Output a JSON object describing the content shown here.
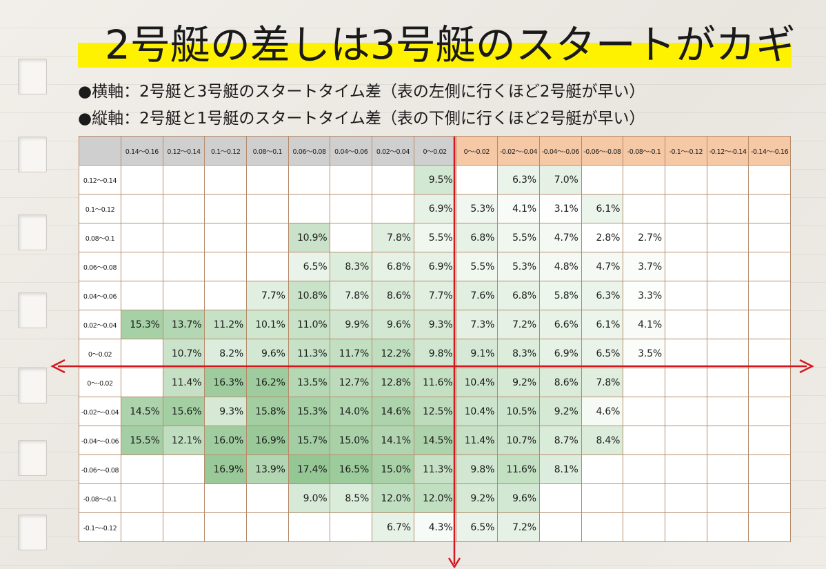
{
  "title": "2号艇の差しは3号艇のスタートがカギ",
  "notes": {
    "horizontal": "●横軸：2号艇と3号艇のスタートタイム差（表の左側に行くほど2号艇が早い）",
    "vertical": "●縦軸：2号艇と1号艇のスタートタイム差（表の下側に行くほど2号艇が早い）"
  },
  "colors": {
    "highlight": "#fff200",
    "left_header": "#cfcfcf",
    "right_header": "#f5c8a6",
    "axis_arrow": "#d6161e",
    "cell_low": "#ffffff",
    "cell_high": "#8fc48f",
    "grid_line": "#b58b6a"
  },
  "chart_data": {
    "type": "heatmap",
    "title": "2号艇の差しは3号艇のスタートがカギ",
    "xlabel": "2号艇と3号艇のスタートタイム差（表の左側に行くほど2号艇が早い）",
    "ylabel": "2号艇と1号艇のスタートタイム差（表の下側に行くほど2号艇が早い）",
    "x_categories": [
      "0.14～0.16",
      "0.12～0.14",
      "0.1～0.12",
      "0.08～0.1",
      "0.06～0.08",
      "0.04～0.06",
      "0.02～0.04",
      "0～0.02",
      "0～-0.02",
      "-0.02～-0.04",
      "-0.04～-0.06",
      "-0.06～-0.08",
      "-0.08～-0.1",
      "-0.1～-0.12",
      "-0.12～-0.14",
      "-0.14～-0.16"
    ],
    "y_categories": [
      "0.12～0.14",
      "0.1～0.12",
      "0.08～0.1",
      "0.06～0.08",
      "0.04～0.06",
      "0.02～0.04",
      "0～0.02",
      "0～-0.02",
      "-0.02～-0.04",
      "-0.04～-0.06",
      "-0.06～-0.08",
      "-0.08～-0.1",
      "-0.1～-0.12"
    ],
    "unit": "%",
    "values": [
      [
        null,
        null,
        null,
        null,
        null,
        null,
        null,
        9.5,
        null,
        6.3,
        7.0,
        null,
        null,
        null,
        null,
        null
      ],
      [
        null,
        null,
        null,
        null,
        null,
        null,
        null,
        6.9,
        5.3,
        4.1,
        3.1,
        6.1,
        null,
        null,
        null,
        null
      ],
      [
        null,
        null,
        null,
        null,
        10.9,
        null,
        7.8,
        5.5,
        6.8,
        5.5,
        4.7,
        2.8,
        2.7,
        null,
        null,
        null
      ],
      [
        null,
        null,
        null,
        null,
        6.5,
        8.3,
        6.8,
        6.9,
        5.5,
        5.3,
        4.8,
        4.7,
        3.7,
        null,
        null,
        null
      ],
      [
        null,
        null,
        null,
        7.7,
        10.8,
        7.8,
        8.6,
        7.7,
        7.6,
        6.8,
        5.8,
        6.3,
        3.3,
        null,
        null,
        null
      ],
      [
        15.3,
        13.7,
        11.2,
        10.1,
        11.0,
        9.9,
        9.6,
        9.3,
        7.3,
        7.2,
        6.6,
        6.1,
        4.1,
        null,
        null,
        null
      ],
      [
        null,
        10.7,
        8.2,
        9.6,
        11.3,
        11.7,
        12.2,
        9.8,
        9.1,
        8.3,
        6.9,
        6.5,
        3.5,
        null,
        null,
        null
      ],
      [
        null,
        11.4,
        16.3,
        16.2,
        13.5,
        12.7,
        12.8,
        11.6,
        10.4,
        9.2,
        8.6,
        7.8,
        null,
        null,
        null,
        null
      ],
      [
        14.5,
        15.6,
        9.3,
        15.8,
        15.3,
        14.0,
        14.6,
        12.5,
        10.4,
        10.5,
        9.2,
        4.6,
        null,
        null,
        null,
        null
      ],
      [
        15.5,
        12.1,
        16.0,
        16.9,
        15.7,
        15.0,
        14.1,
        14.5,
        11.4,
        10.7,
        8.7,
        8.4,
        null,
        null,
        null,
        null
      ],
      [
        null,
        null,
        16.9,
        13.9,
        17.4,
        16.5,
        15.0,
        11.3,
        9.8,
        11.6,
        8.1,
        null,
        null,
        null,
        null,
        null
      ],
      [
        null,
        null,
        null,
        null,
        9.0,
        8.5,
        12.0,
        12.0,
        9.2,
        9.6,
        null,
        null,
        null,
        null,
        null,
        null
      ],
      [
        null,
        null,
        null,
        null,
        null,
        null,
        6.7,
        4.3,
        6.5,
        7.2,
        null,
        null,
        null,
        null,
        null,
        null
      ]
    ],
    "value_range": [
      2.7,
      17.4
    ],
    "legend": "none",
    "grid": true
  }
}
